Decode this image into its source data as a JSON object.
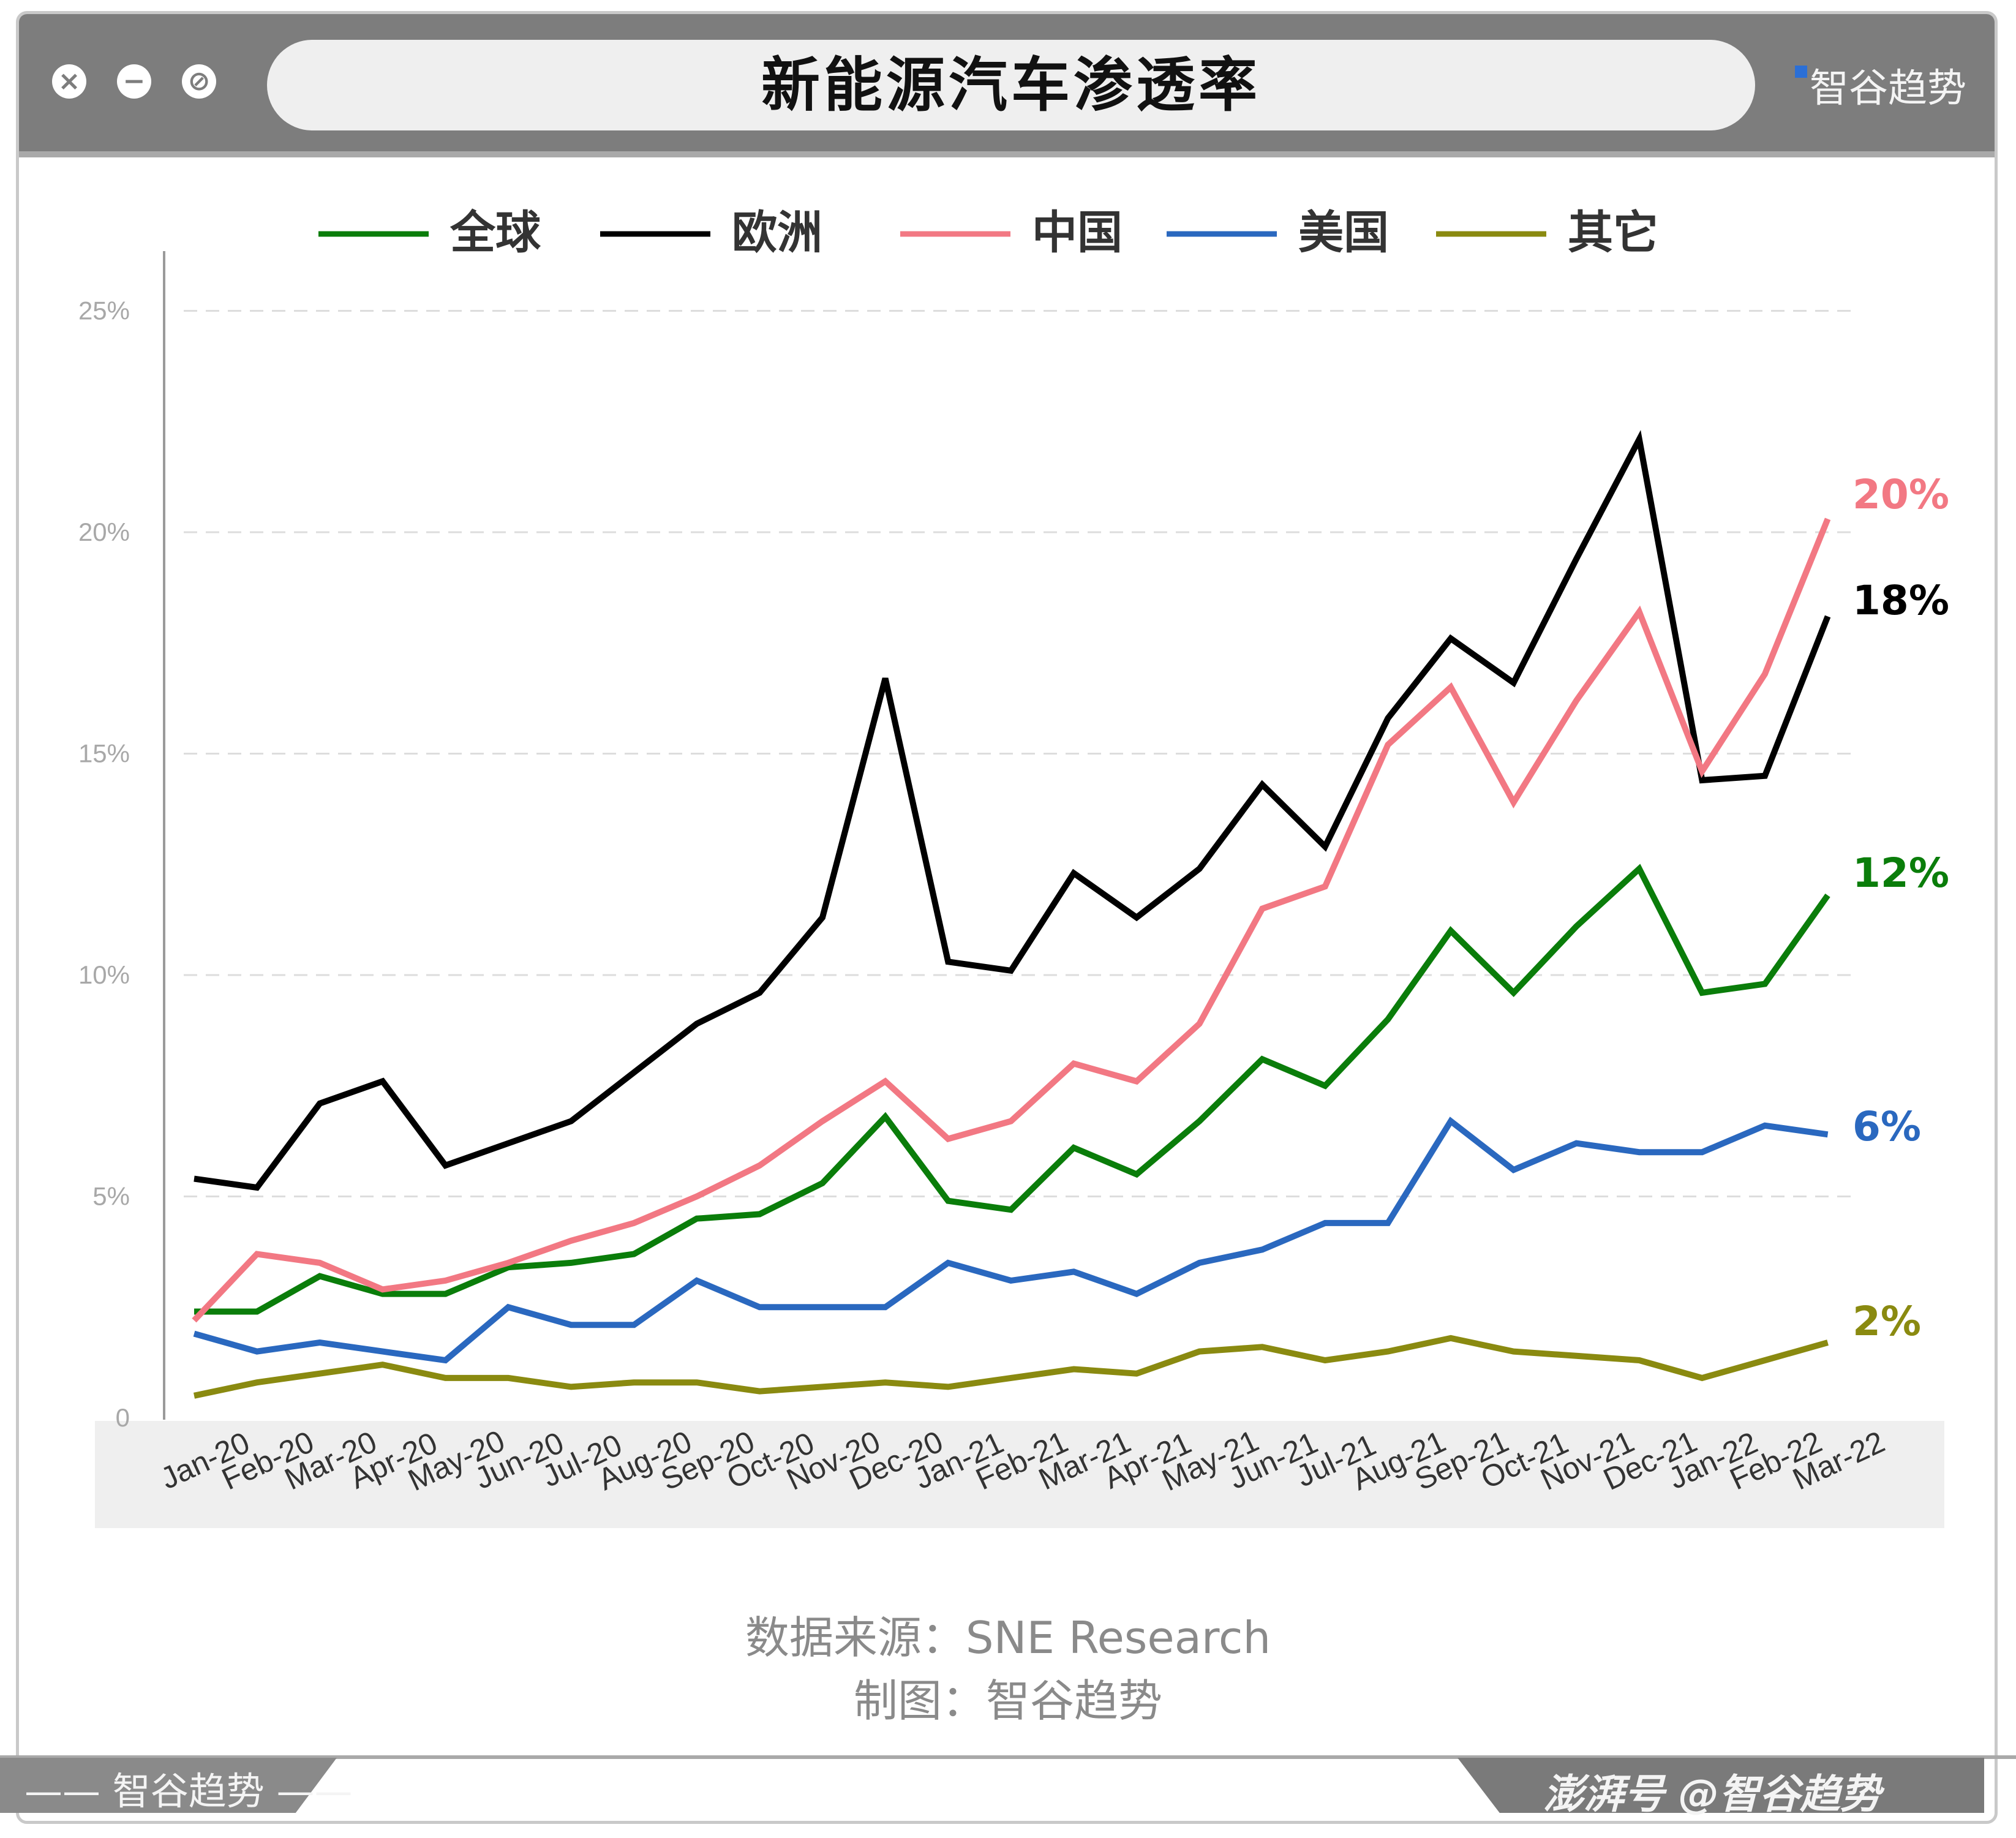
{
  "window": {
    "title": "新能源汽车渗透率",
    "brand": "智谷趋势",
    "controls": [
      "close-icon",
      "minimize-icon",
      "block-icon"
    ]
  },
  "legend": [
    {
      "name": "全球",
      "color": "#0a7d0a"
    },
    {
      "name": "欧洲",
      "color": "#000000"
    },
    {
      "name": "中国",
      "color": "#f27883"
    },
    {
      "name": "美国",
      "color": "#2a68bf"
    },
    {
      "name": "其它",
      "color": "#8a8a10"
    }
  ],
  "chart_data": {
    "type": "line",
    "x": [
      "Jan-20",
      "Feb-20",
      "Mar-20",
      "Apr-20",
      "May-20",
      "Jun-20",
      "Jul-20",
      "Aug-20",
      "Sep-20",
      "Oct-20",
      "Nov-20",
      "Dec-20",
      "Jan-21",
      "Feb-21",
      "Mar-21",
      "Apr-21",
      "May-21",
      "Jun-21",
      "Jul-21",
      "Aug-21",
      "Sep-21",
      "Oct-21",
      "Nov-21",
      "Dec-21",
      "Jan-22",
      "Feb-22",
      "Mar-22"
    ],
    "y_ticks": [
      "0",
      "5%",
      "10%",
      "15%",
      "20%",
      "25%"
    ],
    "ylim": [
      0,
      25
    ],
    "grid": "horizontal dashed",
    "legend_position": "top",
    "series": [
      {
        "name": "全球",
        "color": "#0a7d0a",
        "end_label": "12%",
        "values": [
          2.4,
          2.4,
          3.2,
          2.8,
          2.8,
          3.4,
          3.5,
          3.7,
          4.5,
          4.6,
          5.3,
          6.8,
          4.9,
          4.7,
          6.1,
          5.5,
          6.7,
          8.1,
          7.5,
          9.0,
          11.0,
          9.6,
          11.1,
          12.4,
          9.6,
          9.8,
          11.8
        ]
      },
      {
        "name": "欧洲",
        "color": "#000000",
        "end_label": "18%",
        "values": [
          5.4,
          5.2,
          7.1,
          7.6,
          5.7,
          6.2,
          6.7,
          7.8,
          8.9,
          9.6,
          11.3,
          16.7,
          10.3,
          10.1,
          12.3,
          11.3,
          12.4,
          14.3,
          12.9,
          15.8,
          17.6,
          16.6,
          19.4,
          22.1,
          14.4,
          14.5,
          18.1
        ]
      },
      {
        "name": "中国",
        "color": "#f27883",
        "end_label": "20%",
        "values": [
          2.2,
          3.7,
          3.5,
          2.9,
          3.1,
          3.5,
          4.0,
          4.4,
          5.0,
          5.7,
          6.7,
          7.6,
          6.3,
          6.7,
          8.0,
          7.6,
          8.9,
          11.5,
          12.0,
          15.2,
          16.5,
          13.9,
          16.2,
          18.2,
          14.6,
          16.8,
          20.3
        ]
      },
      {
        "name": "美国",
        "color": "#2a68bf",
        "end_label": "6%",
        "values": [
          1.9,
          1.5,
          1.7,
          1.5,
          1.3,
          2.5,
          2.1,
          2.1,
          3.1,
          2.5,
          2.5,
          2.5,
          3.5,
          3.1,
          3.3,
          2.8,
          3.5,
          3.8,
          4.4,
          4.4,
          6.7,
          5.6,
          6.2,
          6.0,
          6.0,
          6.6,
          6.4
        ]
      },
      {
        "name": "其它",
        "color": "#8a8a10",
        "end_label": "2%",
        "values": [
          0.5,
          0.8,
          1.0,
          1.2,
          0.9,
          0.9,
          0.7,
          0.8,
          0.8,
          0.6,
          0.7,
          0.8,
          0.7,
          0.9,
          1.1,
          1.0,
          1.5,
          1.6,
          1.3,
          1.5,
          1.8,
          1.5,
          1.4,
          1.3,
          0.9,
          1.3,
          1.7
        ]
      }
    ]
  },
  "footer": {
    "source": "数据来源：SNE Research",
    "made_by": "制图：智谷趋势"
  },
  "bottom_bar": {
    "left_label": "智谷趋势",
    "right_label": "澎湃号 @智谷趋势"
  }
}
